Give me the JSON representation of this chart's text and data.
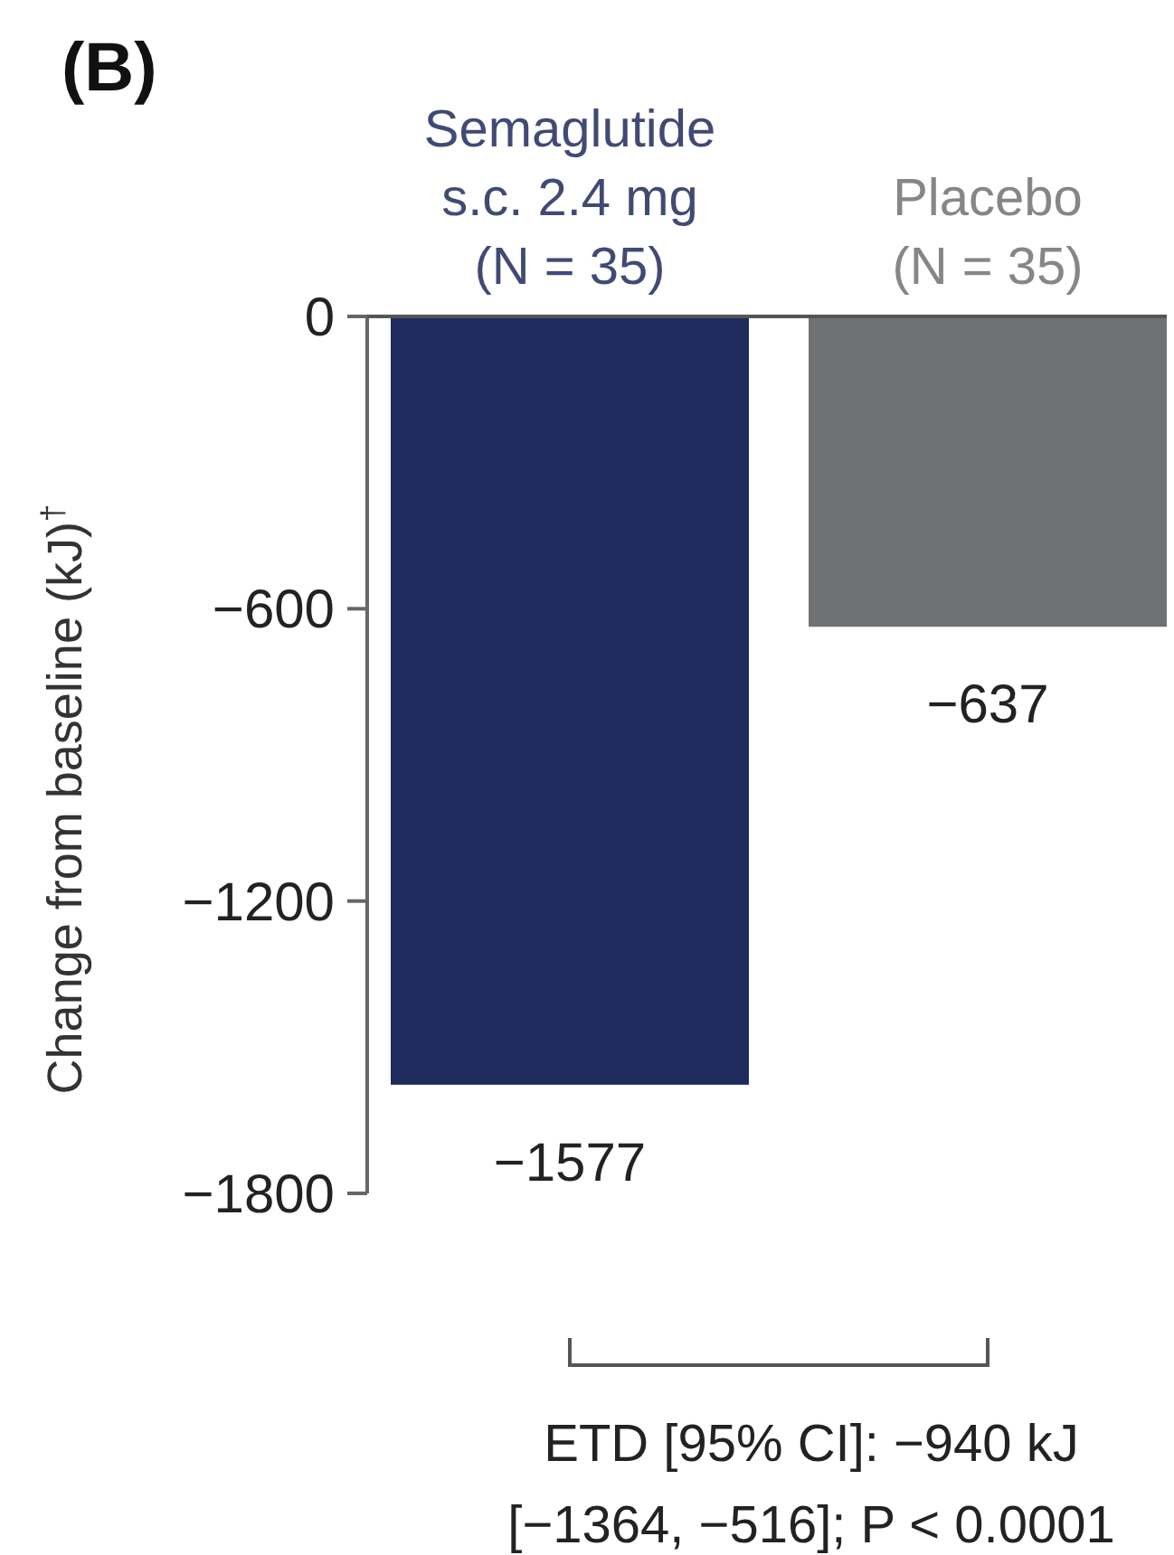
{
  "chart_data": {
    "type": "bar",
    "title": "(B)",
    "categories": [
      "Semaglutide\ns.c. 2.4 mg\n(N = 35)",
      "Placebo\n(N = 35)"
    ],
    "values": [
      -1577,
      -637
    ],
    "colors": [
      "#1f2b5c",
      "#6f7173"
    ],
    "value_labels": [
      "−1577",
      "−637"
    ],
    "ylabel": "Change from baseline (kJ)$^{†}$",
    "ylim": [
      -1800,
      0
    ],
    "yticks": [
      {
        "value": -1800,
        "label": "−1800"
      },
      {
        "value": -1200,
        "label": "−1200"
      },
      {
        "value": -600,
        "label": "−600"
      },
      0
    ],
    "annotations": [
      "ETD [95% CI]: −940 kJ\n[−1364, −516]; P < 0.0001"
    ]
  }
}
